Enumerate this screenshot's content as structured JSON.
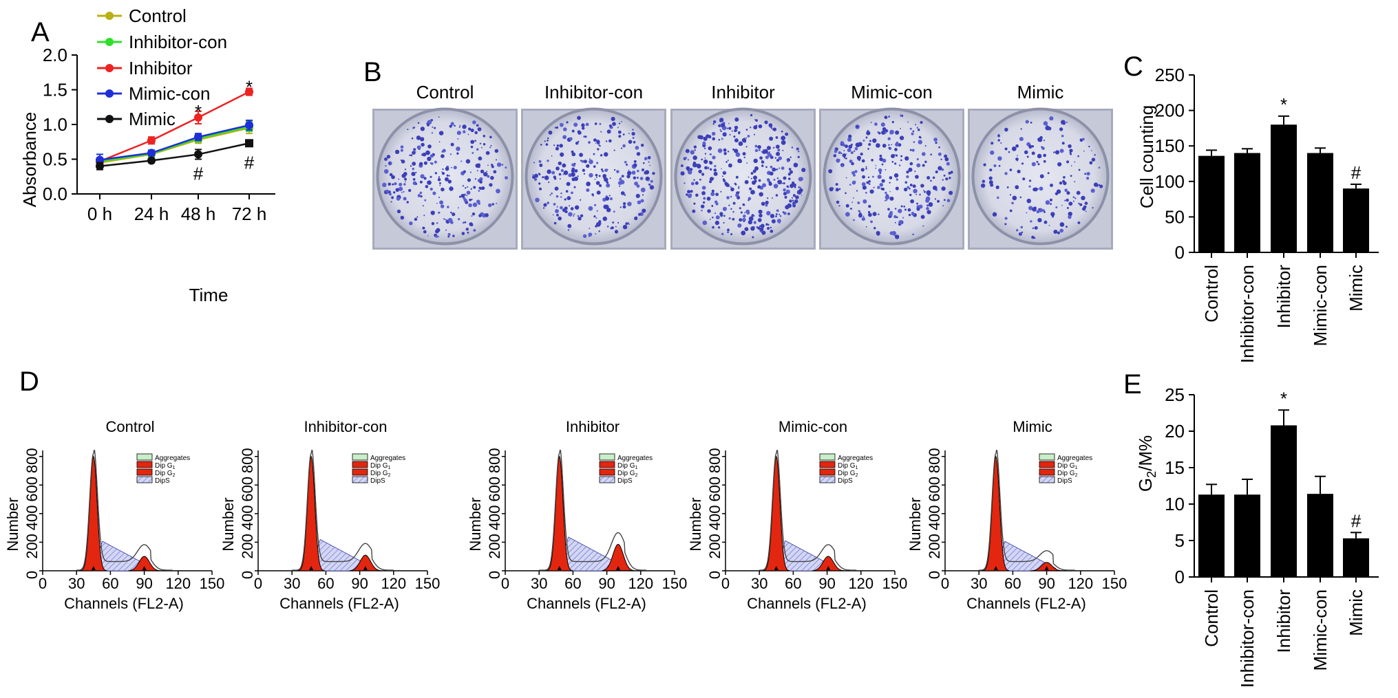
{
  "panels": {
    "a": "A",
    "b": "B",
    "c": "C",
    "d": "D",
    "e": "E"
  },
  "colors": {
    "Control": "#b8b014",
    "Inhibitor-con": "#2fe02a",
    "Inhibitor": "#ee2222",
    "Mimic-con": "#1f2ed8",
    "Mimic": "#111111",
    "bar": "#000000",
    "peak_fill": "#e3260f",
    "s_phase_fill": "#c7cbf0",
    "aggregates_fill": "#c9eec9"
  },
  "chart_data": [
    {
      "id": "A",
      "type": "line",
      "x": [
        "0 h",
        "24 h",
        "48 h",
        "72 h"
      ],
      "xlabel": "Time",
      "ylabel": "Absorbance",
      "ylim": [
        0,
        2.0
      ],
      "yticks": [
        "0.0",
        "0.5",
        "1.0",
        "1.5",
        "2.0"
      ],
      "legend_position": "top-left",
      "series": [
        {
          "name": "Control",
          "values": [
            0.45,
            0.57,
            0.78,
            0.95
          ],
          "errors": [
            0.06,
            0.05,
            0.05,
            0.08
          ]
        },
        {
          "name": "Inhibitor-con",
          "values": [
            0.47,
            0.58,
            0.8,
            0.97
          ],
          "errors": [
            0.05,
            0.05,
            0.05,
            0.07
          ]
        },
        {
          "name": "Inhibitor",
          "values": [
            0.47,
            0.77,
            1.1,
            1.47
          ],
          "errors": [
            0.05,
            0.05,
            0.09,
            0.05
          ]
        },
        {
          "name": "Mimic-con",
          "values": [
            0.49,
            0.59,
            0.82,
            0.99
          ],
          "errors": [
            0.08,
            0.04,
            0.05,
            0.07
          ]
        },
        {
          "name": "Mimic",
          "values": [
            0.4,
            0.48,
            0.57,
            0.73
          ],
          "errors": [
            0.05,
            0.03,
            0.07,
            0.02
          ]
        }
      ],
      "annotations": [
        {
          "text": "*",
          "x": "48 h",
          "y": 1.22
        },
        {
          "text": "*",
          "x": "72 h",
          "y": 1.57
        },
        {
          "text": "#",
          "x": "48 h",
          "y": 0.32
        },
        {
          "text": "#",
          "x": "72 h",
          "y": 0.48
        }
      ]
    },
    {
      "id": "C",
      "type": "bar",
      "categories": [
        "Control",
        "Inhibitor-con",
        "Inhibitor",
        "Mimic-con",
        "Mimic"
      ],
      "values": [
        136,
        140,
        180,
        140,
        90
      ],
      "errors": [
        8,
        6,
        12,
        7,
        6
      ],
      "ylabel": "Cell counting",
      "ylim": [
        0,
        250
      ],
      "yticks": [
        "0",
        "50",
        "100",
        "150",
        "200",
        "250"
      ],
      "annotations": [
        {
          "text": "*",
          "category": "Inhibitor"
        },
        {
          "text": "#",
          "category": "Mimic"
        }
      ]
    },
    {
      "id": "E",
      "type": "bar",
      "categories": [
        "Control",
        "Inhibitor-con",
        "Inhibitor",
        "Mimic-con",
        "Mimic"
      ],
      "values": [
        11.3,
        11.3,
        20.8,
        11.4,
        5.3
      ],
      "errors": [
        1.4,
        2.1,
        2.1,
        2.4,
        0.8
      ],
      "ylabel_main": "G",
      "ylabel_sub": "2",
      "ylabel_tail": "/M%",
      "ylim": [
        0,
        25
      ],
      "yticks": [
        "0",
        "5",
        "10",
        "15",
        "20",
        "25"
      ],
      "annotations": [
        {
          "text": "*",
          "category": "Inhibitor"
        },
        {
          "text": "#",
          "category": "Mimic"
        }
      ]
    }
  ],
  "colony_panel": {
    "labels": [
      "Control",
      "Inhibitor-con",
      "Inhibitor",
      "Mimic-con",
      "Mimic"
    ],
    "colony_counts": [
      136,
      140,
      180,
      140,
      90
    ]
  },
  "cytometry": {
    "xlabel": "Channels (FL2-A)",
    "ylabel": "Number",
    "xticks": [
      "0",
      "30",
      "60",
      "90",
      "120",
      "150"
    ],
    "yticks": [
      "0",
      "200",
      "400",
      "600",
      "800"
    ],
    "legend": [
      "Aggregates",
      "Dip G",
      "Dip G",
      "DipS"
    ],
    "legend_subs": [
      "",
      "1",
      "2",
      ""
    ],
    "plots": [
      {
        "title": "Control",
        "g1_pos": 45,
        "g2_pos": 90,
        "g2_height": 0.12
      },
      {
        "title": "Inhibitor-con",
        "g1_pos": 47,
        "g2_pos": 95,
        "g2_height": 0.13
      },
      {
        "title": "Inhibitor",
        "g1_pos": 48,
        "g2_pos": 100,
        "g2_height": 0.22
      },
      {
        "title": "Mimic-con",
        "g1_pos": 45,
        "g2_pos": 91,
        "g2_height": 0.12
      },
      {
        "title": "Mimic",
        "g1_pos": 45,
        "g2_pos": 90,
        "g2_height": 0.07
      }
    ]
  }
}
